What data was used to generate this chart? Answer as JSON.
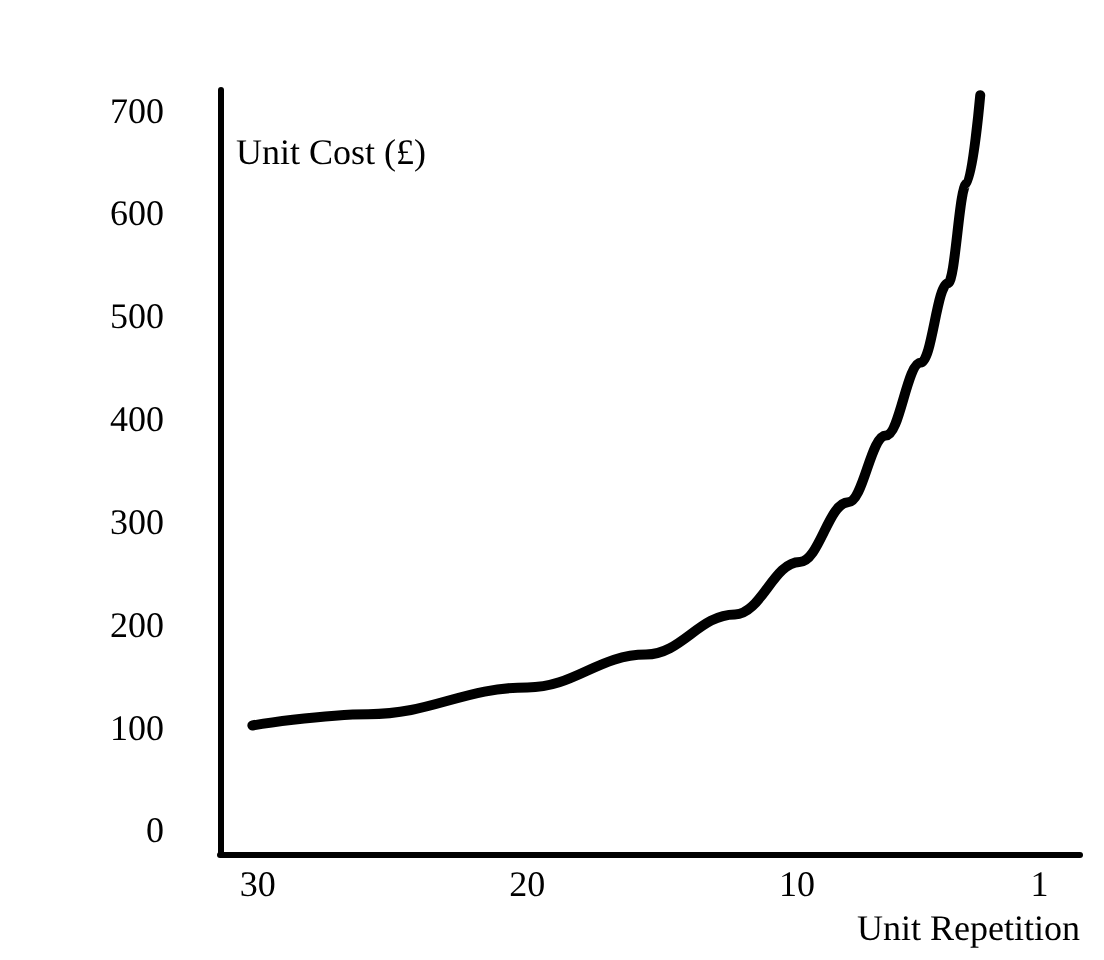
{
  "chart_data": {
    "type": "line",
    "xlabel": "Unit Repetition",
    "ylabel": "Unit Cost (£)",
    "x": [
      30.2,
      25.9,
      20,
      15.6,
      12.3,
      9.9,
      8.1,
      6.7,
      5.4,
      4.4,
      3.7,
      3.2
    ],
    "series": [
      {
        "color": "#000000",
        "values": [
          102,
          113,
          139,
          171,
          210,
          261,
          319,
          384,
          455,
          532,
          629,
          715
        ]
      }
    ],
    "xlim": [
      31.4,
      -0.5
    ],
    "xticks": [
      30,
      20,
      10,
      1
    ],
    "ylim": [
      -23,
      720
    ],
    "yticks": [
      0,
      100,
      200,
      300,
      400,
      500,
      600,
      700
    ],
    "marker": "none",
    "line_style": "solid"
  }
}
